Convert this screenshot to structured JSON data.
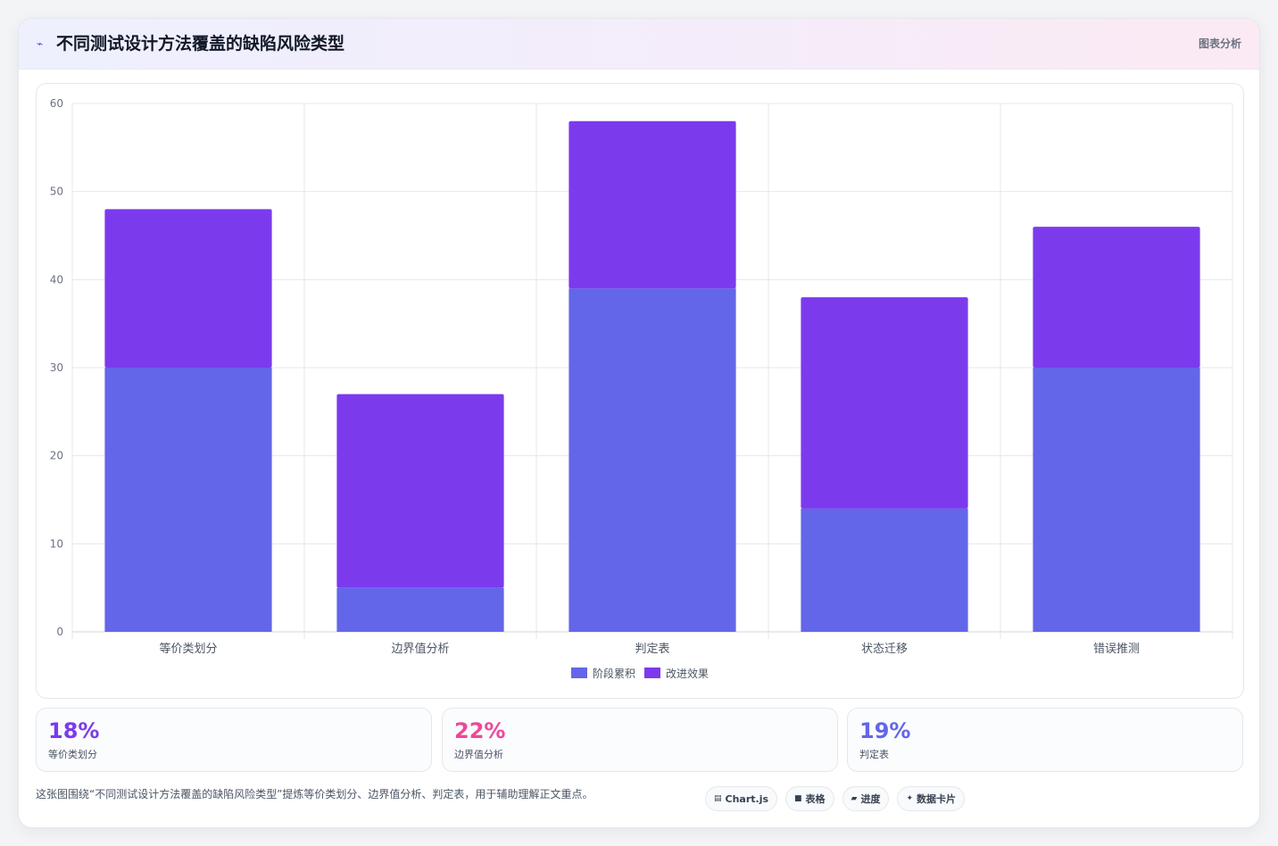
{
  "header": {
    "title": "不同测试设计方法覆盖的缺陷风险类型",
    "title_icon": "chart-icon",
    "badge": "图表分析"
  },
  "chart_data": {
    "type": "bar",
    "stacked": true,
    "categories": [
      "等价类划分",
      "边界值分析",
      "判定表",
      "状态迁移",
      "错误推测"
    ],
    "series": [
      {
        "name": "阶段累积",
        "values": [
          30,
          5,
          39,
          14,
          30
        ],
        "color": "#6366e9"
      },
      {
        "name": "改进效果",
        "values": [
          18,
          22,
          19,
          24,
          16
        ],
        "color": "#7c3aed"
      }
    ],
    "ylim": [
      0,
      60
    ],
    "yticks": [
      0,
      10,
      20,
      30,
      40,
      50,
      60
    ],
    "grid": true,
    "legend_position": "bottom"
  },
  "stats": [
    {
      "value": "18%",
      "label": "等价类划分",
      "color": "#7c3aed"
    },
    {
      "value": "22%",
      "label": "边界值分析",
      "color": "#ec4899"
    },
    {
      "value": "19%",
      "label": "判定表",
      "color": "#6366e9"
    }
  ],
  "footer": {
    "note": "这张图围绕“不同测试设计方法覆盖的缺陷风险类型”提炼等价类划分、边界值分析、判定表，用于辅助理解正文重点。"
  },
  "tags": [
    {
      "icon": "▤",
      "label": "Chart.js"
    },
    {
      "icon": "■",
      "label": "表格"
    },
    {
      "icon": "▰",
      "label": "进度"
    },
    {
      "icon": "✦",
      "label": "数据卡片"
    }
  ]
}
